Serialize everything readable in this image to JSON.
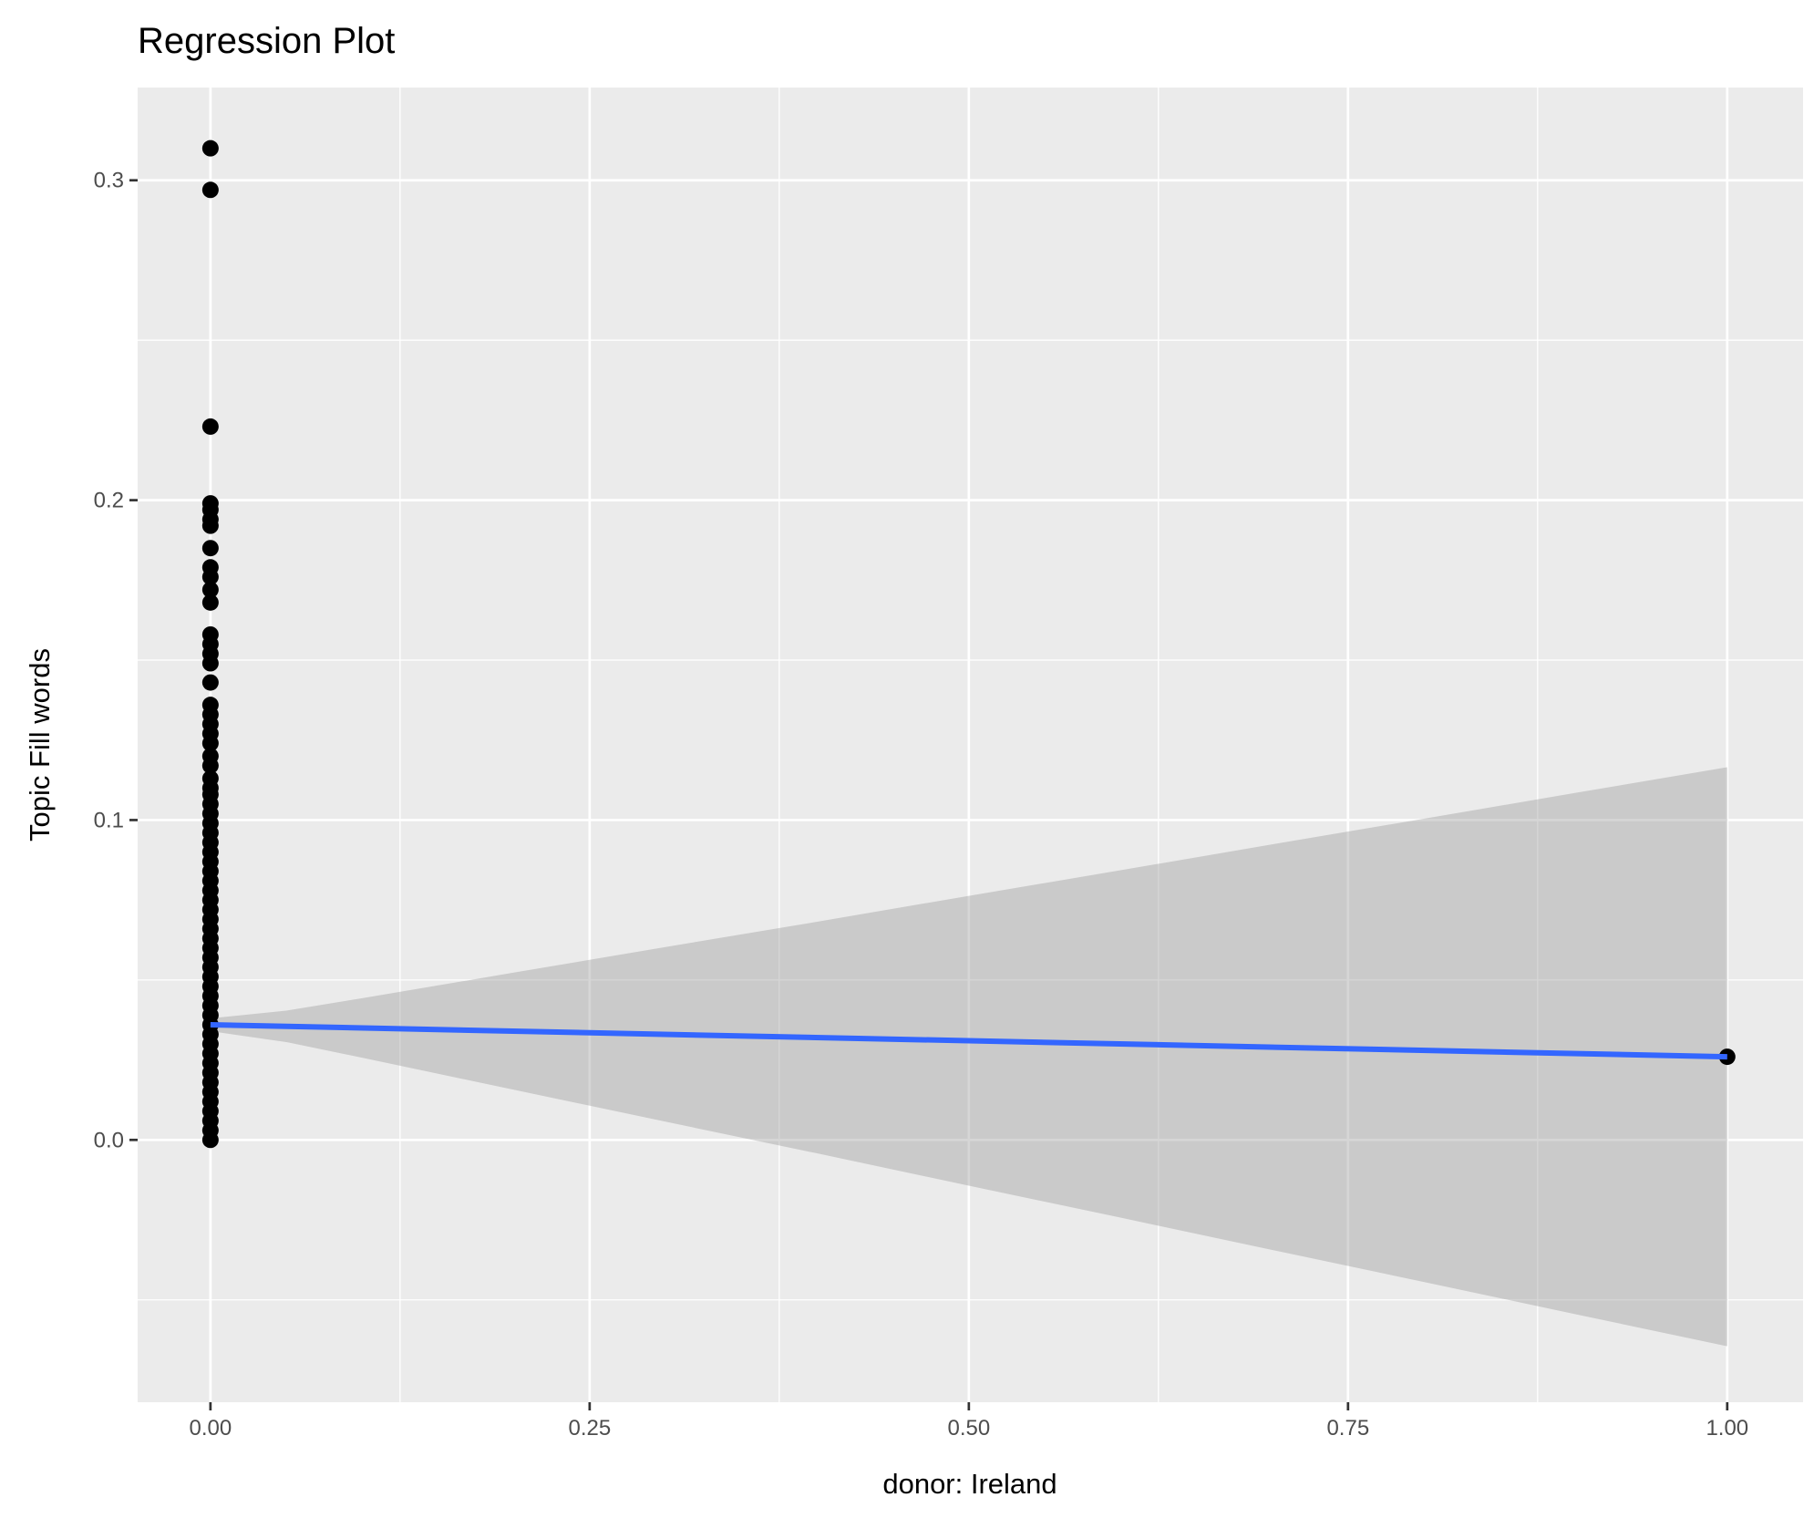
{
  "chart_data": {
    "type": "scatter",
    "title": "Regression Plot",
    "xlabel": "donor: Ireland",
    "ylabel": "Topic Fill words",
    "xlim": [
      -0.048,
      1.05
    ],
    "ylim": [
      -0.082,
      0.329
    ],
    "x_ticks": [
      0,
      0.25,
      0.5,
      0.75,
      1.0
    ],
    "x_tick_labels": [
      "0.00",
      "0.25",
      "0.50",
      "0.75",
      "1.00"
    ],
    "x_minor": [
      0.125,
      0.375,
      0.625,
      0.875
    ],
    "y_ticks": [
      0,
      0.1,
      0.2,
      0.3
    ],
    "y_tick_labels": [
      "0.0",
      "0.1",
      "0.2",
      "0.3"
    ],
    "y_minor": [
      -0.05,
      0.05,
      0.15,
      0.25
    ],
    "grid": true,
    "points_x0": [
      0.31,
      0.297,
      0.223,
      0.199,
      0.197,
      0.194,
      0.192,
      0.185,
      0.179,
      0.176,
      0.172,
      0.168,
      0.158,
      0.155,
      0.152,
      0.149,
      0.143,
      0.136,
      0.133,
      0.13,
      0.127,
      0.124,
      0.12,
      0.117,
      0.113,
      0.11,
      0.108,
      0.105,
      0.102,
      0.099,
      0.096,
      0.093,
      0.09,
      0.087,
      0.084,
      0.081,
      0.078,
      0.075,
      0.072,
      0.069,
      0.066,
      0.063,
      0.06,
      0.057,
      0.054,
      0.051,
      0.048,
      0.045,
      0.042,
      0.039,
      0.036,
      0.033,
      0.03,
      0.027,
      0.024,
      0.021,
      0.018,
      0.015,
      0.012,
      0.009,
      0.006,
      0.003,
      0.0
    ],
    "points_x1": [
      0.026
    ],
    "regression": {
      "x": [
        0,
        1
      ],
      "y": [
        0.036,
        0.026
      ]
    },
    "ci": {
      "x": [
        0,
        0.05,
        0.1,
        0.2,
        0.3,
        0.4,
        0.5,
        0.6,
        0.7,
        0.8,
        0.9,
        1.0
      ],
      "half_width": [
        0.002,
        0.0049,
        0.0093,
        0.0183,
        0.0273,
        0.0362,
        0.0453,
        0.0543,
        0.0634,
        0.0724,
        0.0815,
        0.0905
      ]
    },
    "colors": {
      "panel": "#ebebeb",
      "grid": "#ffffff",
      "line": "#3366ff",
      "ribbon": "#999999",
      "point": "#000000"
    }
  }
}
